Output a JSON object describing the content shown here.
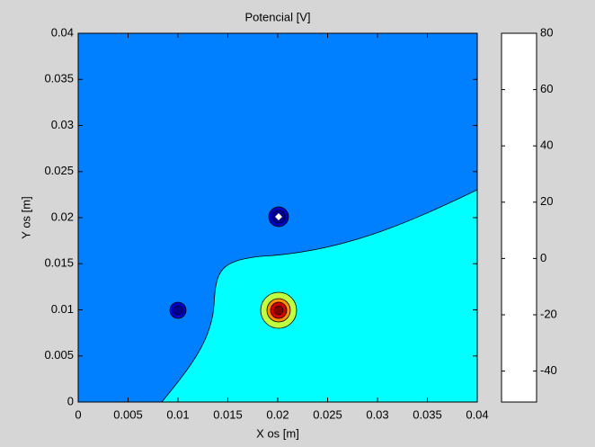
{
  "chart_data": {
    "type": "contour",
    "title": "Potencial [V]",
    "x_label": "X os [m]",
    "y_label": "Y os  [m]",
    "xlim": [
      0,
      0.04
    ],
    "ylim": [
      0,
      0.04
    ],
    "xticks": [
      0,
      0.005,
      0.01,
      0.015,
      0.02,
      0.025,
      0.03,
      0.035,
      0.04
    ],
    "yticks": [
      0,
      0.005,
      0.01,
      0.015,
      0.02,
      0.025,
      0.03,
      0.035,
      0.04
    ],
    "colorbar": {
      "ylim": [
        -51,
        80
      ],
      "yticks": [
        -40,
        -20,
        0,
        20,
        40,
        60,
        80
      ]
    }
  }
}
